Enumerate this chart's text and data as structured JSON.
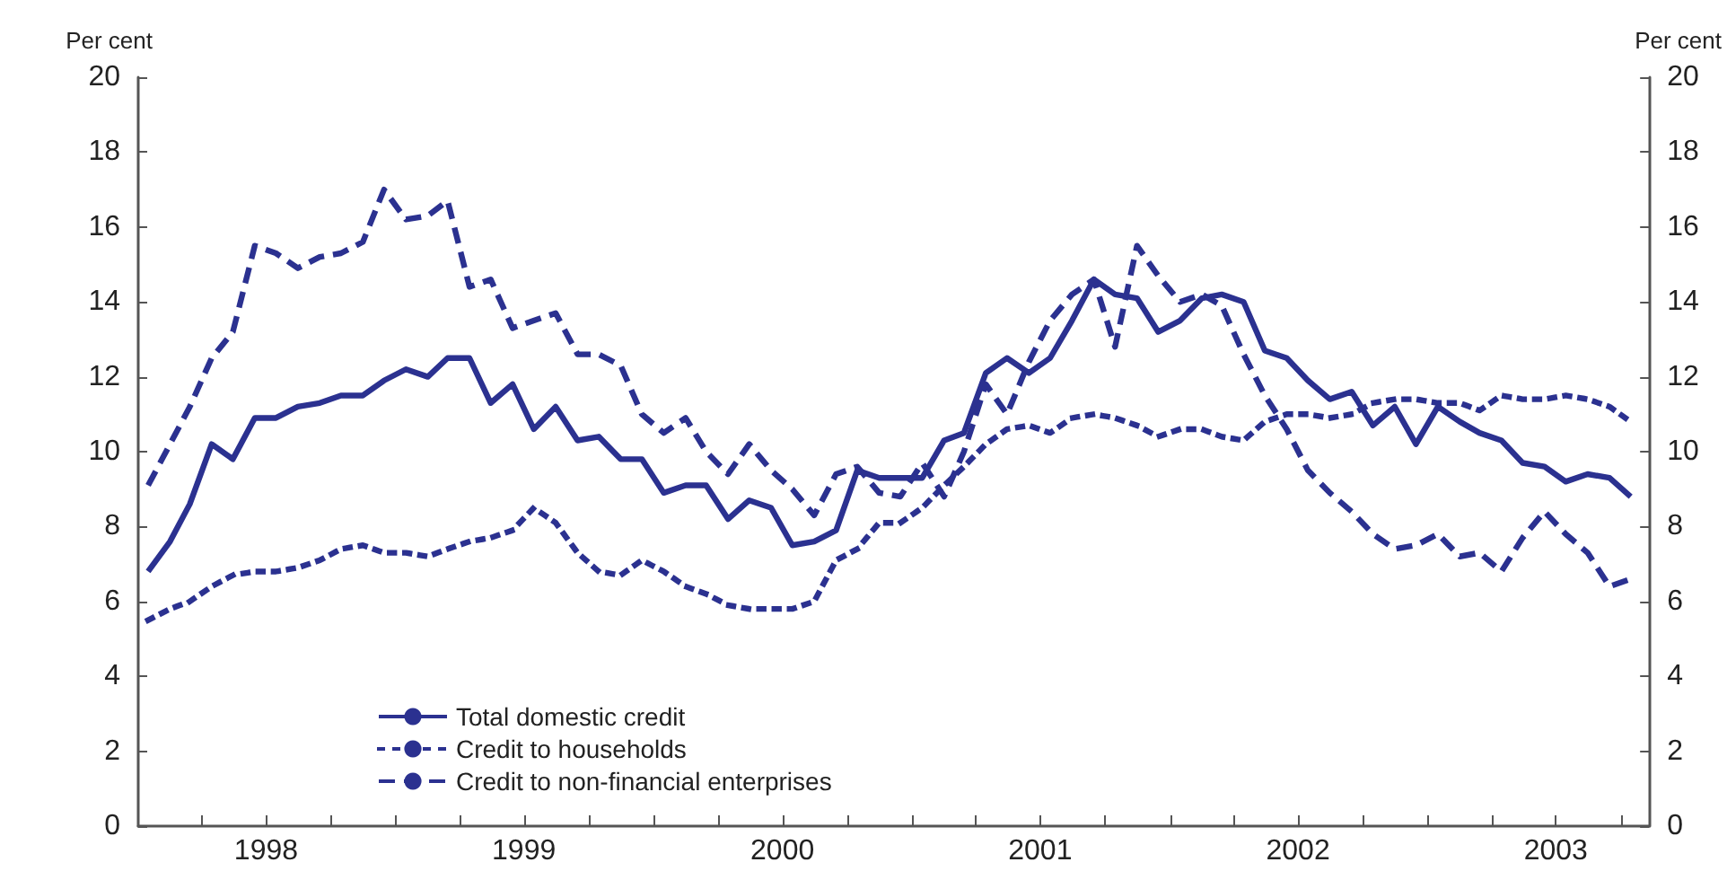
{
  "chart_data": {
    "type": "line",
    "ylabel": "Per cent",
    "y2label": "Per cent",
    "x": [
      "1998-01-15",
      "1998-02-15",
      "1998-03-15",
      "1998-04-15",
      "1998-05-15",
      "1998-06-15",
      "1998-07-15",
      "1998-08-15",
      "1998-09-15",
      "1998-10-15",
      "1998-11-15",
      "1998-12-15",
      "1999-01-15",
      "1999-02-15",
      "1999-03-15",
      "1999-04-15",
      "1999-05-15",
      "1999-06-15",
      "1999-07-15",
      "1999-08-15",
      "1999-09-15",
      "1999-10-15",
      "1999-11-15",
      "1999-12-15",
      "2000-01-15",
      "2000-02-15",
      "2000-03-15",
      "2000-04-15",
      "2000-05-15",
      "2000-06-15",
      "2000-07-15",
      "2000-08-15",
      "2000-09-15",
      "2000-10-15",
      "2000-11-15",
      "2000-12-15",
      "2001-01-15",
      "2001-02-15",
      "2001-03-15",
      "2001-04-15",
      "2001-05-15",
      "2001-06-15",
      "2001-07-15",
      "2001-08-15",
      "2001-09-15",
      "2001-10-15",
      "2001-11-15",
      "2001-12-15",
      "2002-01-15",
      "2002-02-15",
      "2002-03-15",
      "2002-04-15",
      "2002-05-15",
      "2002-06-15",
      "2002-07-15",
      "2002-08-15",
      "2002-09-15",
      "2002-10-15",
      "2002-11-15",
      "2002-12-15",
      "2003-01-15",
      "2003-02-15",
      "2003-03-15",
      "2003-04-15",
      "2003-05-15",
      "2003-06-15",
      "2003-07-15",
      "2003-08-15",
      "2003-09-15",
      "2003-10-15"
    ],
    "series": [
      {
        "name": "Total domestic credit",
        "color": "#2b3190",
        "line_style": "solid",
        "values": [
          6.8,
          7.6,
          8.6,
          10.2,
          9.8,
          10.9,
          10.9,
          11.2,
          11.3,
          11.5,
          11.5,
          11.9,
          12.2,
          12.0,
          12.5,
          12.5,
          11.3,
          11.8,
          10.6,
          11.2,
          10.3,
          10.4,
          9.8,
          9.8,
          8.9,
          9.1,
          9.1,
          8.2,
          8.7,
          8.5,
          7.5,
          7.6,
          7.9,
          9.5,
          9.3,
          9.3,
          9.3,
          10.3,
          10.5,
          12.1,
          12.5,
          12.1,
          12.5,
          13.5,
          14.6,
          14.2,
          14.1,
          13.2,
          13.5,
          14.1,
          14.2,
          14.0,
          12.7,
          12.5,
          11.9,
          11.4,
          11.6,
          10.7,
          11.2,
          10.2,
          11.2,
          10.8,
          10.5,
          10.3,
          9.7,
          9.6,
          9.2,
          9.4,
          9.3,
          8.8
        ]
      },
      {
        "name": "Credit to households",
        "color": "#2b3190",
        "line_style": "dotted",
        "values": [
          5.5,
          5.8,
          6.0,
          6.4,
          6.7,
          6.8,
          6.8,
          6.9,
          7.1,
          7.4,
          7.5,
          7.3,
          7.3,
          7.2,
          7.4,
          7.6,
          7.7,
          7.9,
          8.5,
          8.1,
          7.3,
          6.8,
          6.7,
          7.1,
          6.8,
          6.4,
          6.2,
          5.9,
          5.8,
          5.8,
          5.8,
          6.0,
          7.1,
          7.4,
          8.1,
          8.1,
          8.5,
          9.1,
          9.6,
          10.2,
          10.6,
          10.7,
          10.5,
          10.9,
          11.0,
          10.9,
          10.7,
          10.4,
          10.6,
          10.6,
          10.4,
          10.3,
          10.8,
          11.0,
          11.0,
          10.9,
          11.0,
          11.3,
          11.4,
          11.4,
          11.3,
          11.3,
          11.1,
          11.5,
          11.4,
          11.4,
          11.5,
          11.4,
          11.2,
          10.8
        ]
      },
      {
        "name": "Credit to non-financial enterprises",
        "color": "#2b3190",
        "line_style": "dashed",
        "values": [
          9.1,
          10.2,
          11.2,
          12.5,
          13.2,
          15.5,
          15.3,
          14.9,
          15.2,
          15.3,
          15.6,
          17.0,
          16.2,
          16.3,
          16.7,
          14.4,
          14.6,
          13.3,
          13.5,
          13.7,
          12.6,
          12.6,
          12.3,
          11.0,
          10.5,
          10.9,
          10.0,
          9.4,
          10.2,
          9.5,
          9.0,
          8.3,
          9.4,
          9.6,
          8.9,
          8.8,
          9.7,
          8.8,
          10.0,
          11.8,
          11.0,
          12.4,
          13.5,
          14.2,
          14.6,
          12.8,
          15.5,
          14.7,
          14.0,
          14.2,
          13.9,
          12.6,
          11.5,
          10.6,
          9.5,
          8.9,
          8.4,
          7.8,
          7.4,
          7.5,
          7.8,
          7.2,
          7.3,
          6.8,
          7.7,
          8.4,
          7.8,
          7.3,
          6.4,
          6.6
        ]
      }
    ],
    "xlim": [
      "1998-01-01",
      "2003-11-10"
    ],
    "xticks": [
      {
        "value": "1998-04-01",
        "label": null
      },
      {
        "value": "1998-07-01",
        "label": "1998"
      },
      {
        "value": "1998-10-01",
        "label": null
      },
      {
        "value": "1999-01-01",
        "label": null
      },
      {
        "value": "1999-04-01",
        "label": null
      },
      {
        "value": "1999-07-01",
        "label": "1999"
      },
      {
        "value": "1999-10-01",
        "label": null
      },
      {
        "value": "2000-01-01",
        "label": null
      },
      {
        "value": "2000-04-01",
        "label": null
      },
      {
        "value": "2000-07-01",
        "label": "2000"
      },
      {
        "value": "2000-10-01",
        "label": null
      },
      {
        "value": "2001-01-01",
        "label": null
      },
      {
        "value": "2001-04-01",
        "label": null
      },
      {
        "value": "2001-07-01",
        "label": "2001"
      },
      {
        "value": "2001-10-01",
        "label": null
      },
      {
        "value": "2002-01-01",
        "label": null
      },
      {
        "value": "2002-04-01",
        "label": null
      },
      {
        "value": "2002-07-01",
        "label": "2002"
      },
      {
        "value": "2002-10-01",
        "label": null
      },
      {
        "value": "2003-01-01",
        "label": null
      },
      {
        "value": "2003-04-01",
        "label": null
      },
      {
        "value": "2003-07-01",
        "label": "2003"
      },
      {
        "value": "2003-10-01",
        "label": null
      }
    ],
    "ylim": [
      0,
      20
    ],
    "yticks": [
      0,
      2,
      4,
      6,
      8,
      10,
      12,
      14,
      16,
      18,
      20
    ],
    "y2lim": [
      0,
      20
    ],
    "y2ticks": [
      0,
      2,
      4,
      6,
      8,
      10,
      12,
      14,
      16,
      18,
      20
    ],
    "legend": "bottom left",
    "grid": false,
    "marker": "none"
  }
}
